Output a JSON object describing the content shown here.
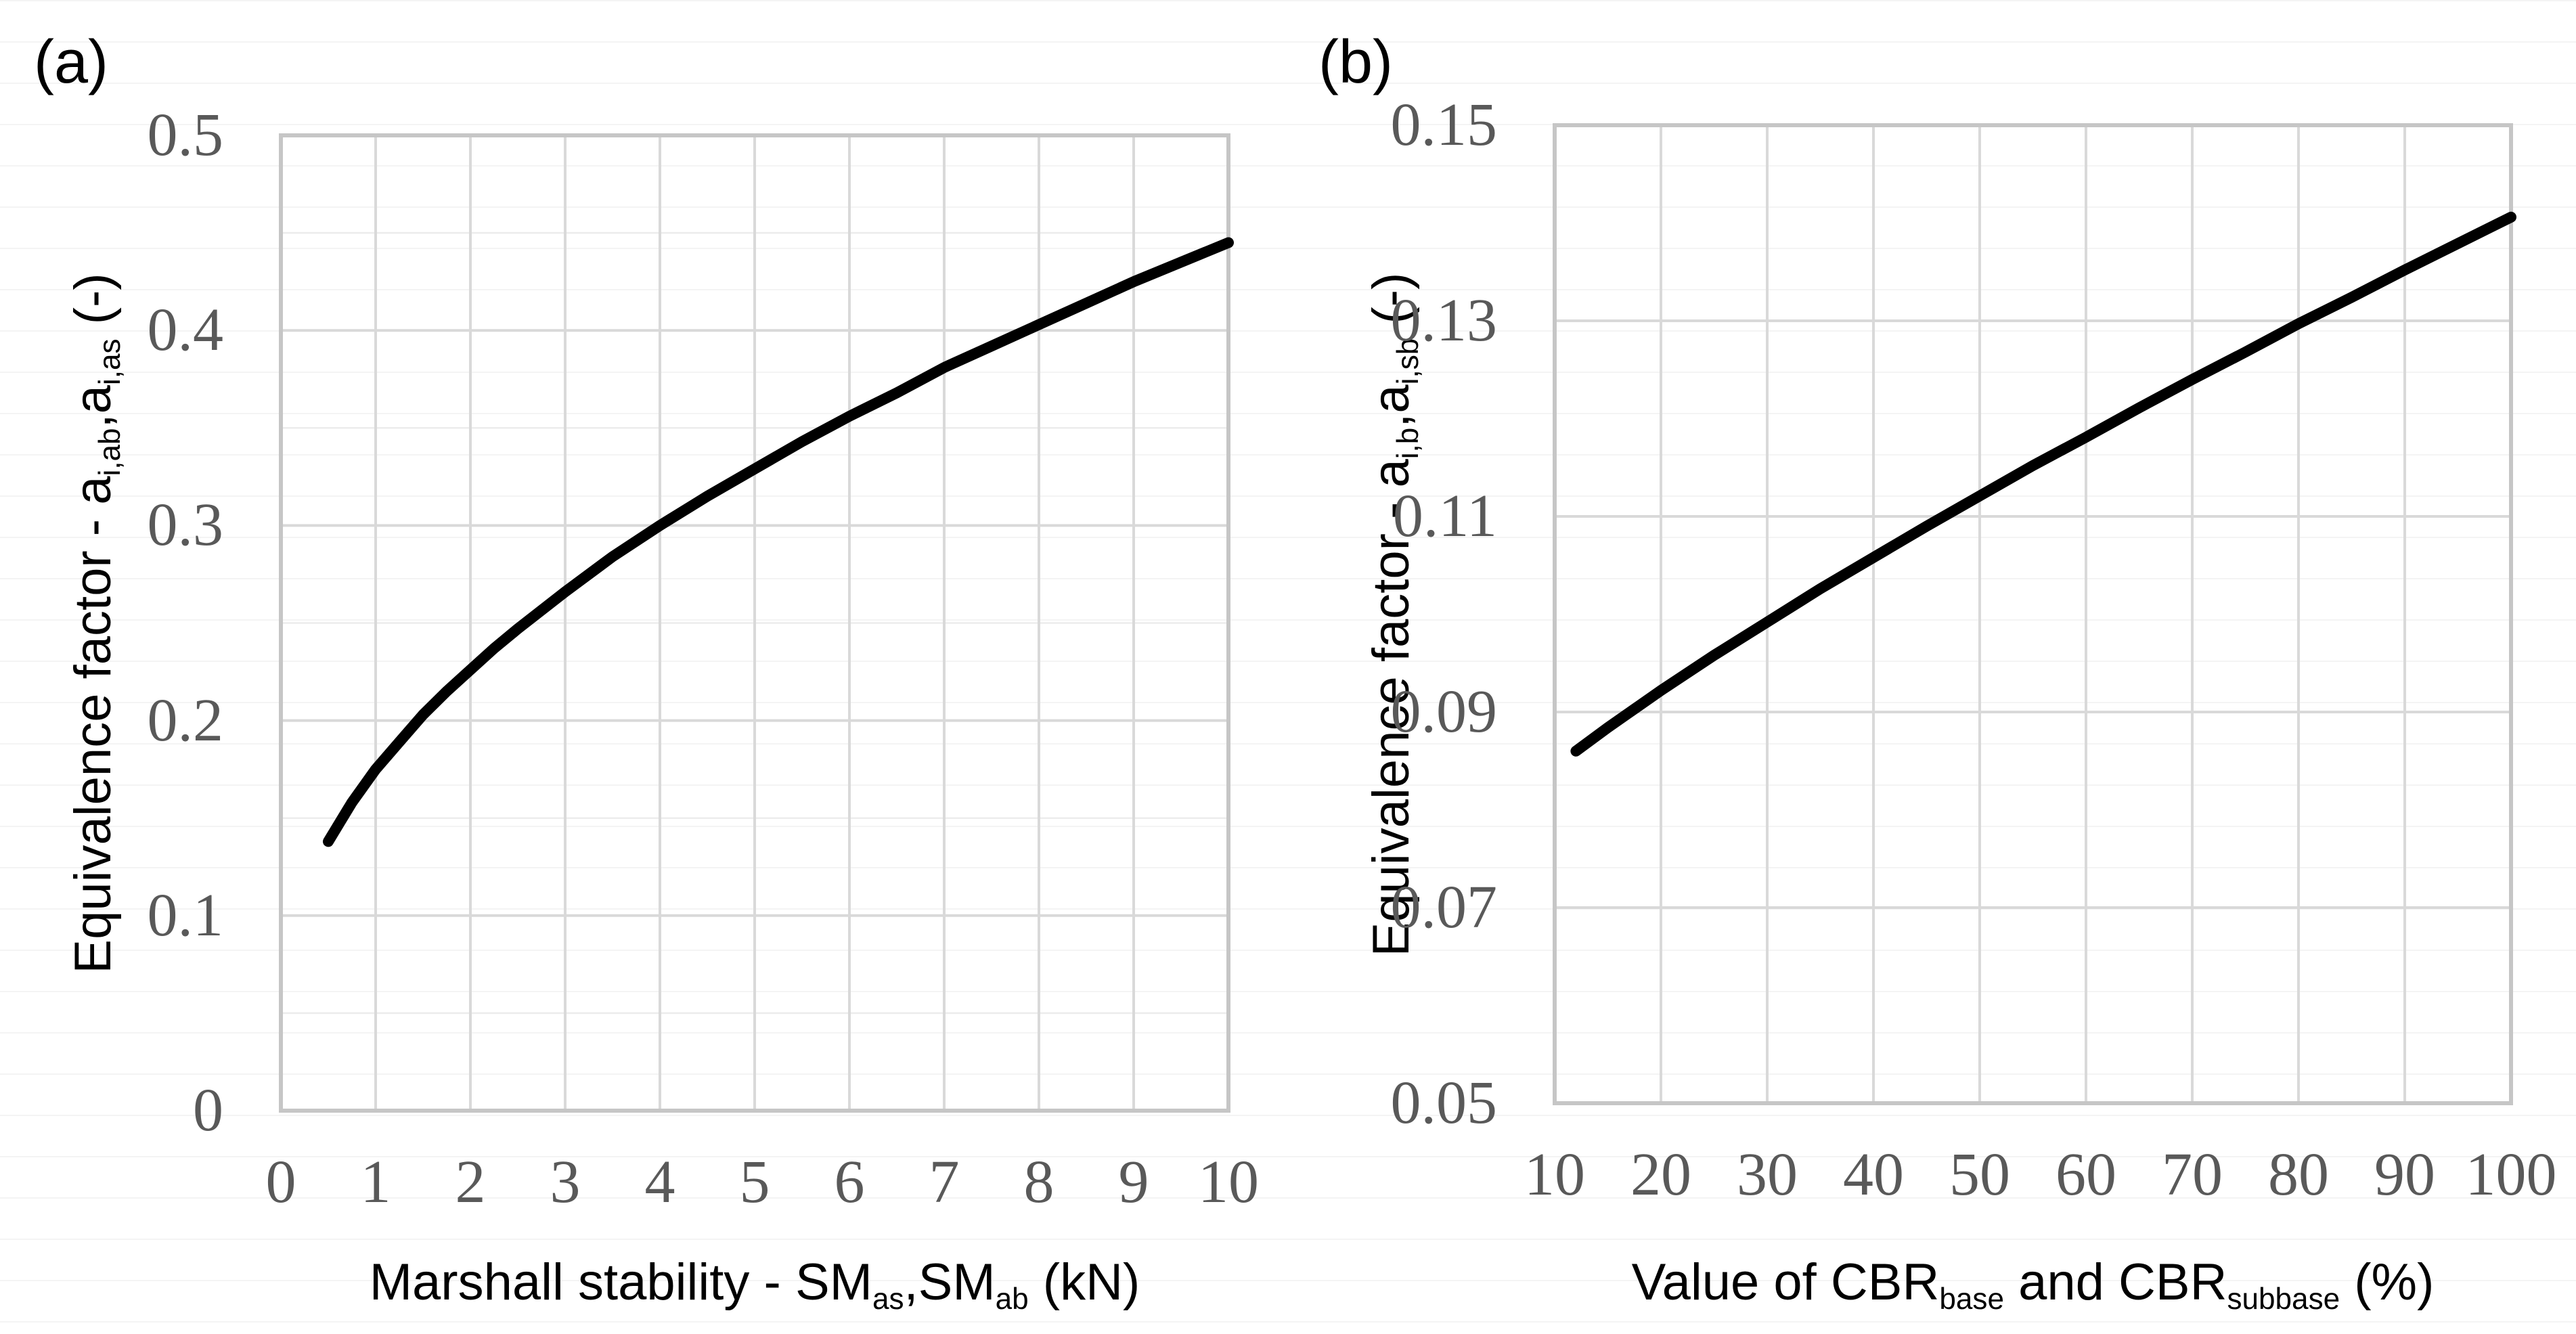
{
  "style": {
    "background": "#ffffff",
    "curve_color": "#000000",
    "tick_label_color": "#595959",
    "title_color": "#000000",
    "grid_major_color": "#d9d9d9",
    "grid_minor_color": "#ececec",
    "plot_border_color": "#c6c6c6",
    "sheet_row_line_color": "#f4f4f4"
  },
  "chart_data": [
    {
      "type": "line",
      "panel": "(a)",
      "xlabel": "Marshall stability - SMas,SMab (kN)",
      "ylabel": "Equivalence factor - ai,ab,ai,as (-)",
      "xlabel_rich": [
        {
          "t": "Marshall stability - SM"
        },
        {
          "sub": "as"
        },
        {
          "t": ",SM"
        },
        {
          "sub": "ab"
        },
        {
          "t": " (kN)"
        }
      ],
      "ylabel_rich": [
        {
          "t": "Equivalence factor - a"
        },
        {
          "sub": "i,ab"
        },
        {
          "t": ",a"
        },
        {
          "sub": "i,as"
        },
        {
          "t": " (-)"
        }
      ],
      "xlim": [
        0,
        10
      ],
      "ylim": [
        0,
        0.5
      ],
      "x_major": 1,
      "x_minor": null,
      "y_major": 0.1,
      "y_minor": 0.05,
      "x_tick_values": [
        0,
        1,
        2,
        3,
        4,
        5,
        6,
        7,
        8,
        9,
        10
      ],
      "x_tick_labels": [
        "0",
        "1",
        "2",
        "3",
        "4",
        "5",
        "6",
        "7",
        "8",
        "9",
        "10"
      ],
      "y_tick_values": [
        0,
        0.1,
        0.2,
        0.3,
        0.4,
        0.5
      ],
      "y_tick_labels": [
        "0",
        "0.1",
        "0.2",
        "0.3",
        "0.4",
        "0.5"
      ],
      "grid": true,
      "legend": null,
      "series": [
        {
          "name": "equivalence-factor-vs-marshall-stability",
          "x": [
            0.5,
            0.75,
            1,
            1.25,
            1.5,
            1.75,
            2,
            2.25,
            2.5,
            3,
            3.5,
            4,
            4.5,
            5,
            5.5,
            6,
            6.5,
            7,
            7.5,
            8,
            8.5,
            9,
            9.5,
            10
          ],
          "y": [
            0.138,
            0.158,
            0.175,
            0.189,
            0.203,
            0.215,
            0.226,
            0.237,
            0.247,
            0.266,
            0.284,
            0.3,
            0.315,
            0.329,
            0.343,
            0.356,
            0.368,
            0.381,
            0.392,
            0.403,
            0.414,
            0.425,
            0.435,
            0.445
          ]
        }
      ]
    },
    {
      "type": "line",
      "panel": "(b)",
      "xlabel": "Value of CBRbase and CBRsubbase (%)",
      "ylabel": "Equivalence factor - ai,b,ai,sb (-)",
      "xlabel_rich": [
        {
          "t": "Value of CBR"
        },
        {
          "sub": "base"
        },
        {
          "t": " and CBR"
        },
        {
          "sub": "subbase"
        },
        {
          "t": " (%)"
        }
      ],
      "ylabel_rich": [
        {
          "t": "Equivalence factor - a"
        },
        {
          "sub": "i,b"
        },
        {
          "t": ",a"
        },
        {
          "sub": "i,sb"
        },
        {
          "t": " (-)"
        }
      ],
      "xlim": [
        10,
        100
      ],
      "ylim": [
        0.05,
        0.15
      ],
      "x_major": 10,
      "x_minor": null,
      "y_major": 0.02,
      "y_minor": 0.01,
      "x_tick_values": [
        10,
        20,
        30,
        40,
        50,
        60,
        70,
        80,
        90,
        100
      ],
      "x_tick_labels": [
        "10",
        "20",
        "30",
        "40",
        "50",
        "60",
        "70",
        "80",
        "90",
        "100"
      ],
      "y_tick_values": [
        0.05,
        0.07,
        0.09,
        0.11,
        0.13,
        0.15
      ],
      "y_tick_labels": [
        "0.05",
        "0.07",
        "0.09",
        "0.11",
        "0.13",
        "0.15"
      ],
      "grid": true,
      "legend": null,
      "series": [
        {
          "name": "equivalence-factor-vs-cbr",
          "x": [
            12,
            15,
            20,
            25,
            30,
            35,
            40,
            45,
            50,
            55,
            60,
            65,
            70,
            75,
            80,
            85,
            90,
            95,
            100
          ],
          "y": [
            0.086,
            0.0884,
            0.0922,
            0.0958,
            0.0992,
            0.1026,
            0.1058,
            0.109,
            0.1121,
            0.1152,
            0.1181,
            0.1211,
            0.124,
            0.1268,
            0.1297,
            0.1324,
            0.1352,
            0.1379,
            0.1406
          ]
        }
      ]
    }
  ]
}
